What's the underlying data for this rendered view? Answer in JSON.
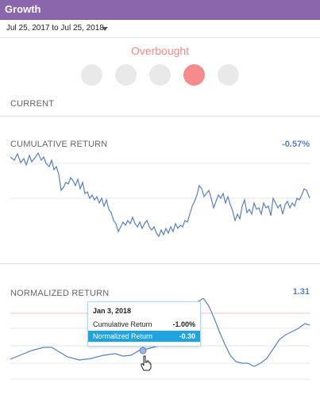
{
  "header": {
    "title": "Growth"
  },
  "filter": {
    "date_range": "Jul 25, 2017 to Jul 25, 2018"
  },
  "indicator": {
    "label": "Overbought",
    "levels": 5,
    "active_level": 4
  },
  "sections": {
    "current": {
      "label": "CURRENT"
    },
    "cumulative": {
      "label": "CUMULATIVE RETURN",
      "value": "-0.57%"
    },
    "normalized": {
      "label": "NORMALIZED RETURN",
      "value": "1.31"
    }
  },
  "tooltip": {
    "date": "Jan 3, 2018",
    "rows": [
      {
        "label": "Cumulative Return",
        "value": "-1.00%"
      },
      {
        "label": "Normalized Return",
        "value": "-0.30"
      }
    ]
  },
  "colors": {
    "header_bg": "#8a66ad",
    "line": "#5a7fbf",
    "overbought": "#f08a8a",
    "highlight": "#1fa4e0"
  }
}
